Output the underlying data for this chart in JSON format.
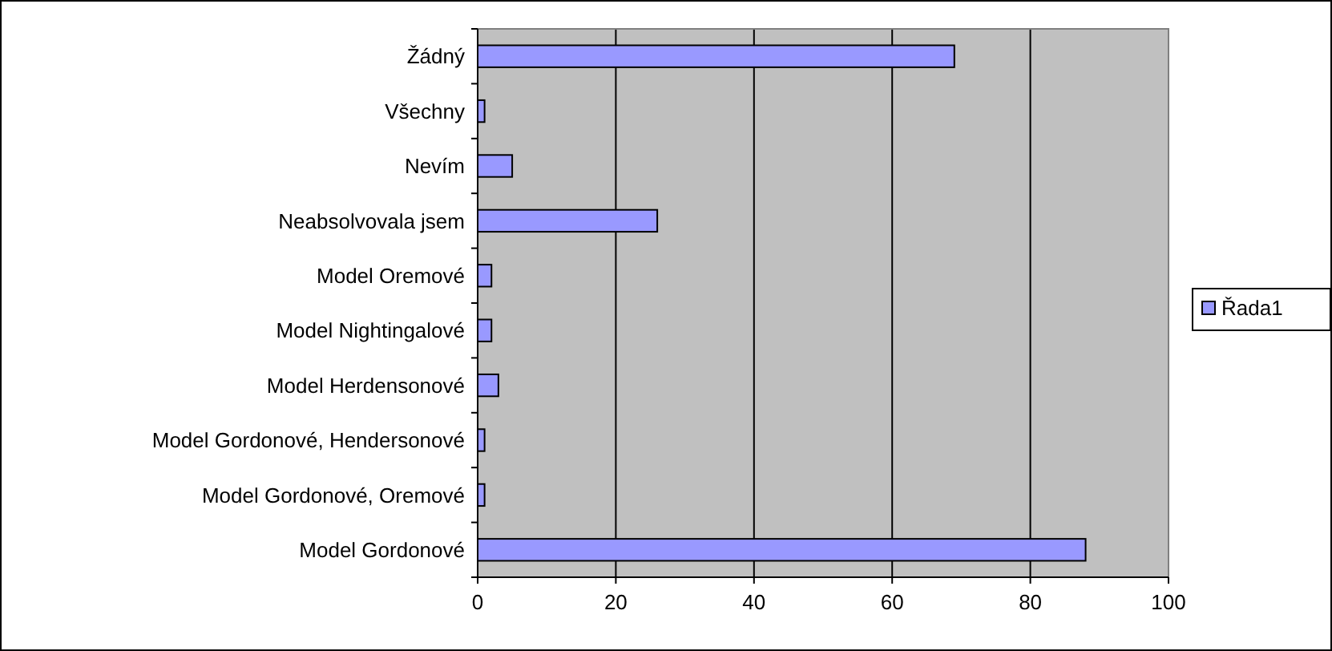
{
  "chart_data": {
    "type": "bar",
    "orientation": "horizontal",
    "categories": [
      "Žádný",
      "Všechny",
      "Nevím",
      "Neabsolvovala jsem",
      "Model Oremové",
      "Model Nightingalové",
      "Model Herdensonové",
      "Model Gordonové, Hendersonové",
      "Model Gordonové, Oremové",
      "Model Gordonové"
    ],
    "series": [
      {
        "name": "Řada1",
        "color": "#9999ff",
        "values": [
          69,
          1,
          5,
          26,
          2,
          2,
          3,
          1,
          1,
          88
        ]
      }
    ],
    "xlim": [
      0,
      100
    ],
    "xticks": [
      0,
      20,
      40,
      60,
      80,
      100
    ],
    "grid": "x",
    "legend": "right"
  }
}
